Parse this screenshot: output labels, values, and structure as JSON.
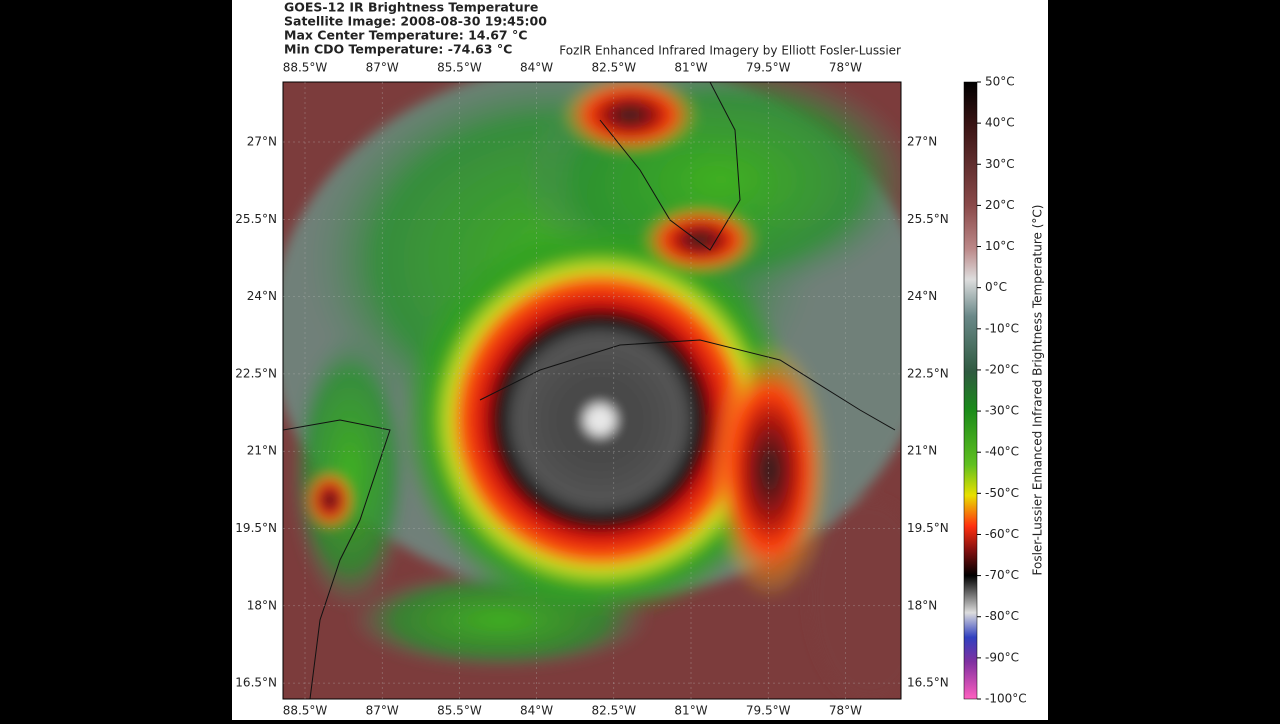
{
  "header": {
    "title": "GOES-12 IR Brightness Temperature",
    "image_time": "Satellite Image: 2008-08-30 19:45:00",
    "max_center": "Max Center Temperature: 14.67 °C",
    "min_cdo": "Min CDO Temperature: -74.63 °C",
    "credit": "FozIR Enhanced Infrared Imagery by Elliott Fosler-Lussier"
  },
  "map": {
    "longitude_labels": [
      "88.5°W",
      "87°W",
      "85.5°W",
      "84°W",
      "82.5°W",
      "81°W",
      "79.5°W",
      "78°W"
    ],
    "latitude_labels": [
      "27°N",
      "25.5°N",
      "24°N",
      "22.5°N",
      "21°N",
      "19.5°N",
      "18°N",
      "16.5°N"
    ]
  },
  "colorbar": {
    "label": "Fosler-Lussier Enhanced Infrared Brightness Temperature (°C)",
    "ticks": [
      "50°C",
      "40°C",
      "30°C",
      "20°C",
      "10°C",
      "0°C",
      "-10°C",
      "-20°C",
      "-30°C",
      "-40°C",
      "-50°C",
      "-60°C",
      "-70°C",
      "-80°C",
      "-90°C",
      "-100°C"
    ]
  }
}
